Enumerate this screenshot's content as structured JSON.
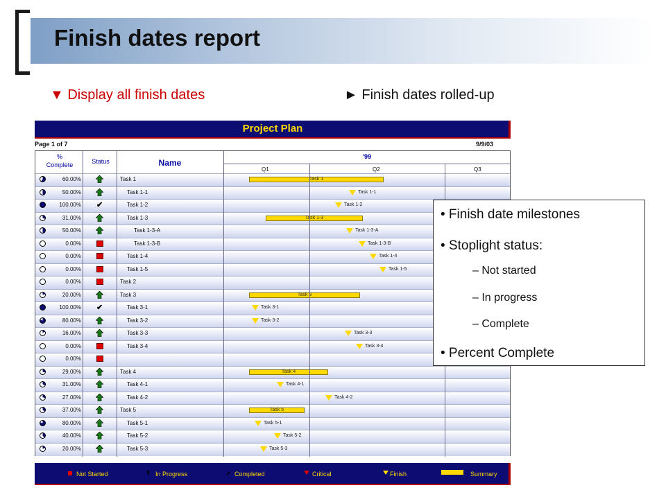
{
  "slide": {
    "title": "Finish dates report",
    "subtitle_left": "▼ Display all finish dates",
    "subtitle_right": "► Finish dates rolled-up"
  },
  "report": {
    "title": "Project Plan",
    "page": "Page 1 of 7",
    "date": "9/9/03",
    "headers": {
      "pct": "%",
      "pct2": "Complete",
      "status": "Status",
      "name": "Name",
      "year": "'99"
    },
    "quarters": [
      "Q1",
      "Q2",
      "Q3"
    ],
    "rows": [
      {
        "pct": "60.00%",
        "status": "progress",
        "name": "Task 1",
        "indent": 0,
        "kind": "bar",
        "label": "Task 1"
      },
      {
        "pct": "50.00%",
        "status": "progress",
        "name": "Task 1-1",
        "indent": 1,
        "kind": "tri",
        "label": "Task 1-1"
      },
      {
        "pct": "100.00%",
        "status": "complete",
        "name": "Task 1-2",
        "indent": 1,
        "kind": "tri",
        "label": "Task 1-2"
      },
      {
        "pct": "31.00%",
        "status": "progress",
        "name": "Task 1-3",
        "indent": 1,
        "kind": "bar",
        "label": "Task 1-3"
      },
      {
        "pct": "50.00%",
        "status": "progress",
        "name": "Task 1-3-A",
        "indent": 2,
        "kind": "tri",
        "label": "Task 1-3-A"
      },
      {
        "pct": "0.00%",
        "status": "notstarted",
        "name": "Task 1-3-B",
        "indent": 2,
        "kind": "tri",
        "label": "Task 1-3-B"
      },
      {
        "pct": "0.00%",
        "status": "notstarted",
        "name": "Task 1-4",
        "indent": 1,
        "kind": "tri",
        "label": "Task 1-4"
      },
      {
        "pct": "0.00%",
        "status": "notstarted",
        "name": "Task 1-5",
        "indent": 1,
        "kind": "tri",
        "label": "Task 1-5"
      },
      {
        "pct": "0.00%",
        "status": "notstarted",
        "name": "Task 2",
        "indent": 0,
        "kind": "none",
        "label": ""
      },
      {
        "pct": "20.00%",
        "status": "progress",
        "name": "Task 3",
        "indent": 0,
        "kind": "bar",
        "label": "Task 3"
      },
      {
        "pct": "100.00%",
        "status": "complete",
        "name": "Task 3-1",
        "indent": 1,
        "kind": "tri",
        "label": "Task 3-1"
      },
      {
        "pct": "80.00%",
        "status": "progress",
        "name": "Task 3-2",
        "indent": 1,
        "kind": "tri",
        "label": "Task 3-2"
      },
      {
        "pct": "16.00%",
        "status": "progress",
        "name": "Task 3-3",
        "indent": 1,
        "kind": "tri",
        "label": "Task 3-3"
      },
      {
        "pct": "0.00%",
        "status": "notstarted",
        "name": "Task 3-4",
        "indent": 1,
        "kind": "tri",
        "label": "Task 3-4"
      },
      {
        "pct": "0.00%",
        "status": "notstarted",
        "name": "",
        "indent": 0,
        "kind": "none",
        "label": ""
      },
      {
        "pct": "29.00%",
        "status": "progress",
        "name": "Task 4",
        "indent": 0,
        "kind": "bar",
        "label": "Task 4"
      },
      {
        "pct": "31.00%",
        "status": "progress",
        "name": "Task 4-1",
        "indent": 1,
        "kind": "tri",
        "label": "Task 4-1"
      },
      {
        "pct": "27.00%",
        "status": "progress",
        "name": "Task 4-2",
        "indent": 1,
        "kind": "tri",
        "label": "Task 4-2"
      },
      {
        "pct": "37.00%",
        "status": "progress",
        "name": "Task 5",
        "indent": 0,
        "kind": "bar",
        "label": "Task 5"
      },
      {
        "pct": "80.00%",
        "status": "progress",
        "name": "Task 5-1",
        "indent": 1,
        "kind": "tri",
        "label": "Task 5-1"
      },
      {
        "pct": "40.00%",
        "status": "progress",
        "name": "Task 5-2",
        "indent": 1,
        "kind": "tri",
        "label": "Task 5-2"
      },
      {
        "pct": "20.00%",
        "status": "progress",
        "name": "Task 5-3",
        "indent": 1,
        "kind": "tri",
        "label": "Task 5-3"
      }
    ],
    "legend": [
      "Not Started",
      "In Progress",
      "Completed",
      "Critical",
      "Finish",
      "Summary"
    ]
  },
  "callout": {
    "bullets": [
      "• Finish date milestones",
      "• Stoplight status:"
    ],
    "subitems": [
      "– Not started",
      "– In progress",
      "– Complete"
    ],
    "last": "• Percent Complete"
  },
  "colors": {
    "header_navy": "#0c0c72",
    "header_text": "#ffd800",
    "bar": "#ffd800",
    "not_started": "#e00000",
    "in_progress": "#1a7a1a"
  }
}
